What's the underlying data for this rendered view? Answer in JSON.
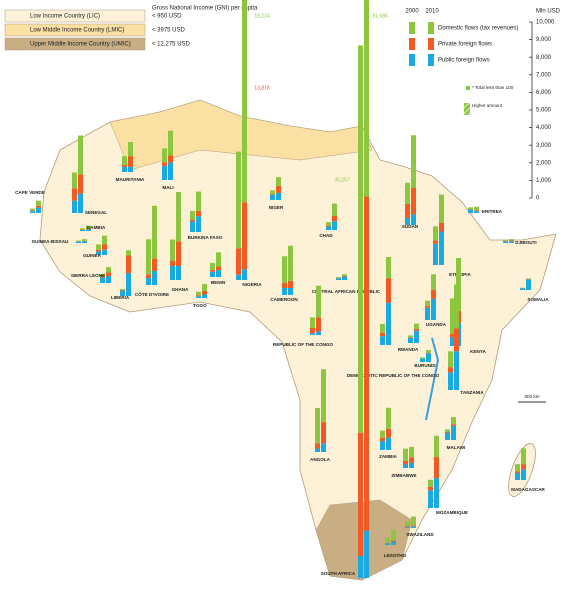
{
  "chart_data": {
    "type": "stacked-bar-map",
    "income_legend_title": "Gross National Income (GNI) per capita",
    "income_legend": [
      {
        "name": "Low Income Country (LIC)",
        "threshold": "< 950 USD",
        "color": "#fdf1d8"
      },
      {
        "name": "Low Middle Income Country (LMIC)",
        "threshold": "< 3975 USD",
        "color": "#fbe0a3"
      },
      {
        "name": "Upper Middle Income Country (UMIC)",
        "threshold": "< 12,275 USD",
        "color": "#c9ad83"
      }
    ],
    "years": [
      "2000",
      "2010"
    ],
    "unit": "Mln USD",
    "series": [
      {
        "name": "Domestic flows (tax revenues)",
        "color": "#8cc63f"
      },
      {
        "name": "Private foreign flows",
        "color": "#f15a24"
      },
      {
        "name": "Public foreign flows",
        "color": "#1ba9e1"
      }
    ],
    "notes": [
      "* Total less than 100",
      "Higher amount"
    ],
    "scale_label": "500 km",
    "annotations": [
      "18,224",
      "13,818",
      "81,686",
      "30,257"
    ],
    "ylim": [
      0,
      10000
    ],
    "yticks": [
      0,
      {
        "value": 1000,
        "label": "1,000"
      },
      {
        "value": 2000,
        "label": "2,000"
      },
      {
        "value": 3000,
        "label": "3,000"
      },
      {
        "value": 4000,
        "label": "4,000"
      },
      {
        "value": 5000,
        "label": "5,000"
      },
      {
        "value": 6000,
        "label": "6,000"
      },
      {
        "value": 7000,
        "label": "7,000"
      },
      {
        "value": 8000,
        "label": "8,000"
      },
      {
        "value": 9000,
        "label": "9,000"
      },
      {
        "value": 10000,
        "label": "10,000"
      }
    ],
    "countries": [
      {
        "name": "CAPE VERDE",
        "values": [
          [
            100,
            50,
            100
          ],
          [
            300,
            100,
            300
          ]
        ]
      },
      {
        "name": "SENEGAL",
        "values": [
          [
            900,
            700,
            700
          ],
          [
            2200,
            1100,
            1100
          ]
        ]
      },
      {
        "name": "GAMBIA",
        "values": [
          [
            80,
            20,
            60
          ],
          [
            150,
            50,
            100
          ]
        ]
      },
      {
        "name": "GUINEA-BISSAU",
        "values": [
          [
            50,
            10,
            80
          ],
          [
            100,
            20,
            100
          ]
        ]
      },
      {
        "name": "GUINEA",
        "values": [
          [
            300,
            100,
            200
          ],
          [
            500,
            300,
            300
          ]
        ]
      },
      {
        "name": "SIERRA LEONE",
        "values": [
          [
            150,
            50,
            300
          ],
          [
            300,
            200,
            400
          ]
        ]
      },
      {
        "name": "LIBERIA",
        "values": [
          [
            50,
            50,
            300
          ],
          [
            300,
            1000,
            1300
          ]
        ]
      },
      {
        "name": "MAURITANIA",
        "values": [
          [
            500,
            100,
            300
          ],
          [
            800,
            600,
            300
          ]
        ]
      },
      {
        "name": "MALI",
        "values": [
          [
            800,
            200,
            800
          ],
          [
            1400,
            400,
            1000
          ]
        ]
      },
      {
        "name": "CÔTE D'IVOIRE",
        "values": [
          [
            2000,
            200,
            400
          ],
          [
            3000,
            700,
            800
          ]
        ]
      },
      {
        "name": "BURKINA FASO",
        "values": [
          [
            500,
            100,
            600
          ],
          [
            1100,
            300,
            900
          ]
        ]
      },
      {
        "name": "GHANA",
        "values": [
          [
            1200,
            300,
            800
          ],
          [
            2800,
            1400,
            800
          ]
        ]
      },
      {
        "name": "TOGO",
        "values": [
          [
            200,
            50,
            100
          ],
          [
            400,
            200,
            200
          ]
        ]
      },
      {
        "name": "BENIN",
        "values": [
          [
            400,
            100,
            300
          ],
          [
            800,
            200,
            400
          ]
        ]
      },
      {
        "name": "NIGER",
        "values": [
          [
            200,
            50,
            300
          ],
          [
            500,
            400,
            400
          ]
        ]
      },
      {
        "name": "NIGERIA",
        "values": [
          [
            5500,
            1500,
            300
          ],
          [
            13818,
            3800,
            606
          ]
        ]
      },
      {
        "name": "CHAD",
        "values": [
          [
            200,
            50,
            200
          ],
          [
            700,
            300,
            500
          ]
        ]
      },
      {
        "name": "CAMEROON",
        "values": [
          [
            1500,
            300,
            400
          ],
          [
            2000,
            400,
            400
          ]
        ]
      },
      {
        "name": "CENTRAL AFRICAN REPUBLIC",
        "values": [
          [
            50,
            20,
            100
          ],
          [
            100,
            30,
            200
          ]
        ]
      },
      {
        "name": "REPUBLIC OF THE CONGO",
        "values": [
          [
            600,
            300,
            100
          ],
          [
            1800,
            800,
            200
          ]
        ]
      },
      {
        "name": "DEMOCRATIC REPUBLIC OF THE CONGO",
        "values": [
          [
            500,
            200,
            500
          ],
          [
            1200,
            1400,
            2400
          ]
        ]
      },
      {
        "name": "SUDAN",
        "values": [
          [
            1200,
            800,
            400
          ],
          [
            3000,
            1500,
            600
          ]
        ]
      },
      {
        "name": "ERITREA",
        "values": [
          [
            100,
            20,
            200
          ],
          [
            200,
            50,
            100
          ]
        ]
      },
      {
        "name": "DJIBOUTI",
        "values": [
          [
            50,
            30,
            100
          ],
          [
            80,
            40,
            100
          ]
        ]
      },
      {
        "name": "ETHIOPIA",
        "values": [
          [
            800,
            200,
            1200
          ],
          [
            1600,
            500,
            1900
          ]
        ]
      },
      {
        "name": "SOMALIA",
        "values": [
          [
            20,
            10,
            100
          ],
          [
            30,
            20,
            600
          ]
        ]
      },
      {
        "name": "UGANDA",
        "values": [
          [
            300,
            100,
            700
          ],
          [
            900,
            500,
            1200
          ]
        ]
      },
      {
        "name": "RWANDA",
        "values": [
          [
            100,
            30,
            300
          ],
          [
            300,
            100,
            700
          ]
        ]
      },
      {
        "name": "BURUNDI",
        "values": [
          [
            50,
            10,
            200
          ],
          [
            150,
            30,
            500
          ]
        ]
      },
      {
        "name": "KENYA",
        "values": [
          [
            2000,
            200,
            500
          ],
          [
            3000,
            700,
            1300
          ]
        ]
      },
      {
        "name": "TANZANIA",
        "values": [
          [
            900,
            300,
            1000
          ],
          [
            2500,
            1300,
            2200
          ]
        ]
      },
      {
        "name": "ANGOLA",
        "values": [
          [
            2000,
            300,
            200
          ],
          [
            3000,
            1200,
            500
          ]
        ]
      },
      {
        "name": "ZAMBIA",
        "values": [
          [
            400,
            200,
            500
          ],
          [
            1200,
            500,
            700
          ]
        ]
      },
      {
        "name": "MALAWI",
        "values": [
          [
            150,
            50,
            400
          ],
          [
            400,
            100,
            800
          ]
        ]
      },
      {
        "name": "ZIMBABWE",
        "values": [
          [
            700,
            200,
            200
          ],
          [
            600,
            300,
            300
          ]
        ]
      },
      {
        "name": "MOZAMBIQUE",
        "values": [
          [
            400,
            200,
            1000
          ],
          [
            1200,
            1200,
            1700
          ]
        ]
      },
      {
        "name": "MADAGASCAR",
        "values": [
          [
            400,
            100,
            400
          ],
          [
            900,
            300,
            600
          ]
        ]
      },
      {
        "name": "SWAZILAND",
        "values": [
          [
            300,
            50,
            50
          ],
          [
            500,
            50,
            100
          ]
        ]
      },
      {
        "name": "LESOTHO",
        "values": [
          [
            300,
            20,
            100
          ],
          [
            600,
            50,
            200
          ]
        ]
      },
      {
        "name": "SOUTH AFRICA",
        "values": [
          [
            22000,
            7000,
            1257
          ],
          [
            60000,
            19000,
            2686
          ]
        ]
      }
    ]
  }
}
